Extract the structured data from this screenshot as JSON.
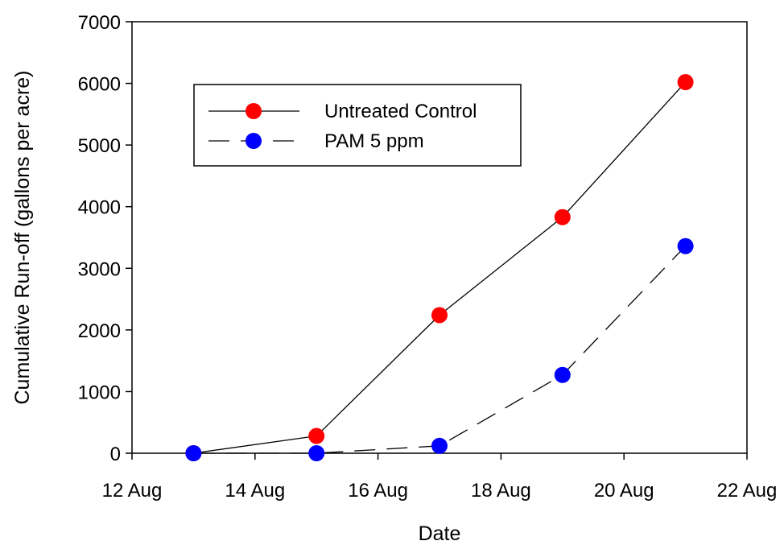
{
  "chart_data": {
    "type": "line",
    "title": "",
    "xlabel": "Date",
    "ylabel": "Cumulative Run-off (gallons per acre)",
    "x_ticks": [
      {
        "value": 12,
        "label": "12 Aug"
      },
      {
        "value": 14,
        "label": "14 Aug"
      },
      {
        "value": 16,
        "label": "16 Aug"
      },
      {
        "value": 18,
        "label": "18 Aug"
      },
      {
        "value": 20,
        "label": "20 Aug"
      },
      {
        "value": 22,
        "label": "22 Aug"
      }
    ],
    "y_ticks": [
      0,
      1000,
      2000,
      3000,
      4000,
      5000,
      6000,
      7000
    ],
    "xlim": [
      12,
      22
    ],
    "ylim": [
      0,
      7000
    ],
    "grid": false,
    "legend_position": "top-left",
    "series": [
      {
        "name": "Untreated Control",
        "color": "#ff0000",
        "line_style": "solid",
        "x": [
          13,
          15,
          17,
          19,
          21
        ],
        "y": [
          0,
          280,
          2240,
          3830,
          6020
        ]
      },
      {
        "name": "PAM  5 ppm",
        "color": "#0000ff",
        "line_style": "dashed",
        "x": [
          13,
          15,
          17,
          19,
          21
        ],
        "y": [
          0,
          0,
          120,
          1270,
          3360
        ]
      }
    ]
  }
}
